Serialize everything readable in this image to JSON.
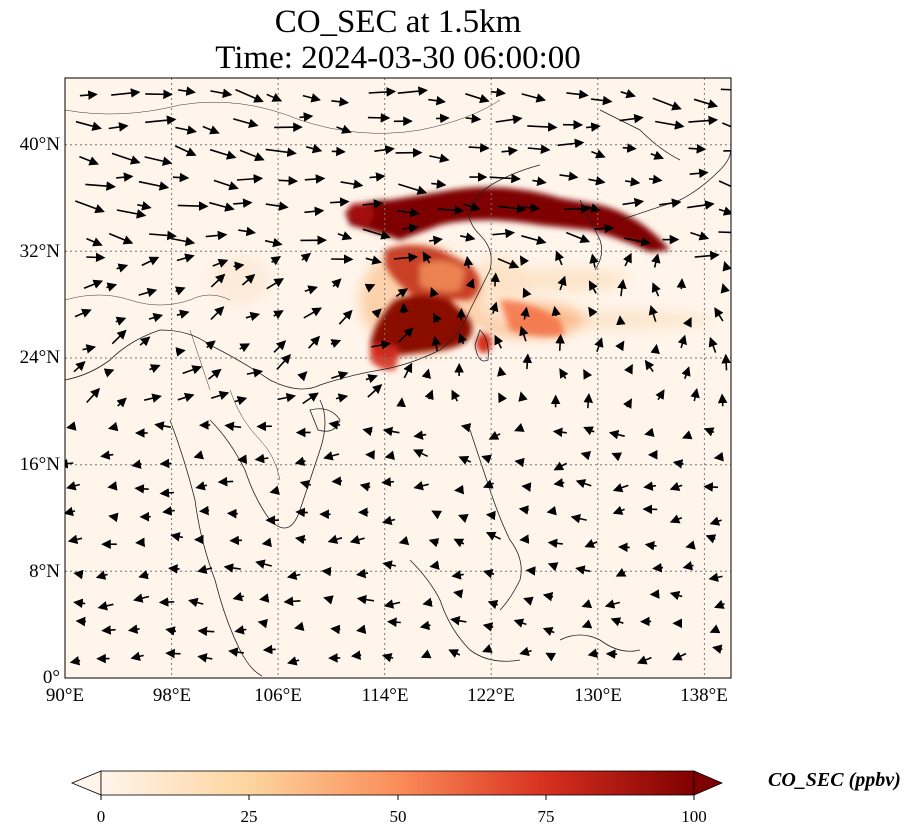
{
  "title": {
    "line1": "CO_SEC at 1.5km",
    "line2": "Time: 2024-03-30 06:00:00"
  },
  "map": {
    "extent": {
      "lon": [
        90,
        140
      ],
      "lat": [
        0,
        45
      ]
    },
    "lat_ticks": [
      "40°N",
      "32°N",
      "24°N",
      "16°N",
      "8°N",
      "0°"
    ],
    "lon_ticks": [
      "90°E",
      "98°E",
      "106°E",
      "114°E",
      "122°E",
      "130°E",
      "138°E"
    ],
    "gridlines": "dotted",
    "background_color": "#fff5eb",
    "field": "CO_SEC",
    "vectors": "wind"
  },
  "colorbar": {
    "label": "CO_SEC (ppbv)",
    "ticks": [
      "0",
      "25",
      "50",
      "75",
      "100"
    ],
    "range": [
      0,
      100
    ],
    "extend": "both",
    "colormap": [
      "#fff5eb",
      "#fdd49e",
      "#fc8d59",
      "#d7301f",
      "#7f0000"
    ]
  }
}
